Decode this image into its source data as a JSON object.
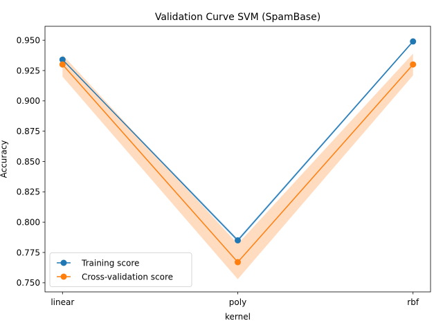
{
  "chart_data": {
    "type": "line",
    "title": "Validation Curve SVM (SpamBase)",
    "xlabel": "kernel",
    "ylabel": "Accuracy",
    "categories": [
      "linear",
      "poly",
      "rbf"
    ],
    "ylim": [
      0.7425,
      0.9615
    ],
    "yticks": [
      0.75,
      0.775,
      0.8,
      0.825,
      0.85,
      0.875,
      0.9,
      0.925,
      0.95
    ],
    "ytick_labels": [
      "0.750",
      "0.775",
      "0.800",
      "0.825",
      "0.850",
      "0.875",
      "0.900",
      "0.925",
      "0.950"
    ],
    "grid": false,
    "legend_position": "lower-left",
    "series": [
      {
        "name": "Training score",
        "color": "#1f77b4",
        "marker": "circle",
        "values": [
          0.934,
          0.785,
          0.949
        ],
        "band_lower": [
          0.933,
          0.7835,
          0.948
        ],
        "band_upper": [
          0.935,
          0.7865,
          0.95
        ],
        "band_color": "#1f77b4"
      },
      {
        "name": "Cross-validation score",
        "color": "#ff7f0e",
        "marker": "circle",
        "values": [
          0.93,
          0.767,
          0.93
        ],
        "band_lower": [
          0.92,
          0.753,
          0.921
        ],
        "band_upper": [
          0.938,
          0.782,
          0.939
        ],
        "band_color": "#ffdbbf"
      }
    ]
  }
}
